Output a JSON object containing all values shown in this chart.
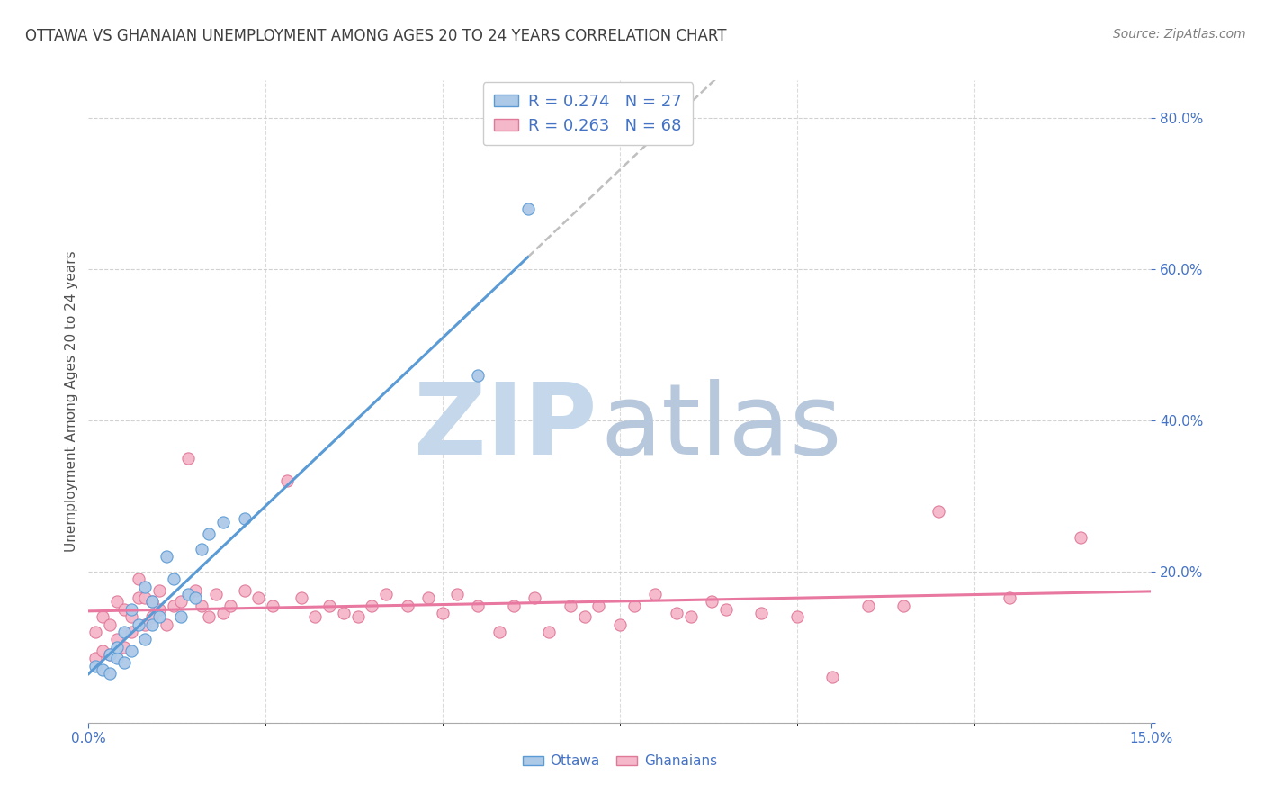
{
  "title": "OTTAWA VS GHANAIAN UNEMPLOYMENT AMONG AGES 20 TO 24 YEARS CORRELATION CHART",
  "source": "Source: ZipAtlas.com",
  "ylabel": "Unemployment Among Ages 20 to 24 years",
  "xlim": [
    0.0,
    0.15
  ],
  "ylim": [
    0.0,
    0.85
  ],
  "yticks": [
    0.0,
    0.2,
    0.4,
    0.6,
    0.8
  ],
  "ytick_labels": [
    "",
    "20.0%",
    "40.0%",
    "60.0%",
    "80.0%"
  ],
  "ottawa_color": "#adc9e8",
  "ghanaian_color": "#f5b8cb",
  "ottawa_edge": "#5b9bd5",
  "ghanaian_edge": "#e07898",
  "trend_ottawa_color": "#5b9bd5",
  "trend_ghanaian_color": "#e878a0",
  "trend_dashed_color": "#b8b8b8",
  "legend_ottawa_label": "R = 0.274   N = 27",
  "legend_ghanaian_label": "R = 0.263   N = 68",
  "ottawa_x": [
    0.001,
    0.002,
    0.003,
    0.003,
    0.004,
    0.004,
    0.005,
    0.005,
    0.006,
    0.006,
    0.007,
    0.008,
    0.008,
    0.009,
    0.009,
    0.01,
    0.011,
    0.012,
    0.013,
    0.014,
    0.015,
    0.016,
    0.017,
    0.019,
    0.022,
    0.055,
    0.062
  ],
  "ottawa_y": [
    0.075,
    0.07,
    0.065,
    0.09,
    0.085,
    0.1,
    0.08,
    0.12,
    0.095,
    0.15,
    0.13,
    0.11,
    0.18,
    0.13,
    0.16,
    0.14,
    0.22,
    0.19,
    0.14,
    0.17,
    0.165,
    0.23,
    0.25,
    0.265,
    0.27,
    0.46,
    0.68
  ],
  "ghanaian_x": [
    0.001,
    0.001,
    0.002,
    0.002,
    0.003,
    0.003,
    0.004,
    0.004,
    0.005,
    0.005,
    0.006,
    0.006,
    0.007,
    0.007,
    0.008,
    0.008,
    0.009,
    0.009,
    0.01,
    0.01,
    0.011,
    0.012,
    0.013,
    0.014,
    0.015,
    0.016,
    0.017,
    0.018,
    0.019,
    0.02,
    0.022,
    0.024,
    0.026,
    0.028,
    0.03,
    0.032,
    0.034,
    0.036,
    0.038,
    0.04,
    0.042,
    0.045,
    0.048,
    0.05,
    0.052,
    0.055,
    0.058,
    0.06,
    0.063,
    0.065,
    0.068,
    0.07,
    0.072,
    0.075,
    0.077,
    0.08,
    0.083,
    0.085,
    0.088,
    0.09,
    0.095,
    0.1,
    0.105,
    0.11,
    0.115,
    0.12,
    0.13,
    0.14
  ],
  "ghanaian_y": [
    0.085,
    0.12,
    0.095,
    0.14,
    0.09,
    0.13,
    0.11,
    0.16,
    0.1,
    0.15,
    0.12,
    0.14,
    0.165,
    0.19,
    0.13,
    0.165,
    0.14,
    0.16,
    0.15,
    0.175,
    0.13,
    0.155,
    0.16,
    0.35,
    0.175,
    0.155,
    0.14,
    0.17,
    0.145,
    0.155,
    0.175,
    0.165,
    0.155,
    0.32,
    0.165,
    0.14,
    0.155,
    0.145,
    0.14,
    0.155,
    0.17,
    0.155,
    0.165,
    0.145,
    0.17,
    0.155,
    0.12,
    0.155,
    0.165,
    0.12,
    0.155,
    0.14,
    0.155,
    0.13,
    0.155,
    0.17,
    0.145,
    0.14,
    0.16,
    0.15,
    0.145,
    0.14,
    0.06,
    0.155,
    0.155,
    0.28,
    0.165,
    0.245
  ],
  "background_color": "#ffffff",
  "grid_color": "#cccccc",
  "watermark_zip_color": "#c5d8eb",
  "watermark_atlas_color": "#b8c8dc",
  "legend_text_color": "#4472c4",
  "tick_color": "#4472c4",
  "bottom_legend_color": "#4472c4",
  "title_color": "#404040",
  "source_color": "#808080",
  "ylabel_color": "#505050"
}
